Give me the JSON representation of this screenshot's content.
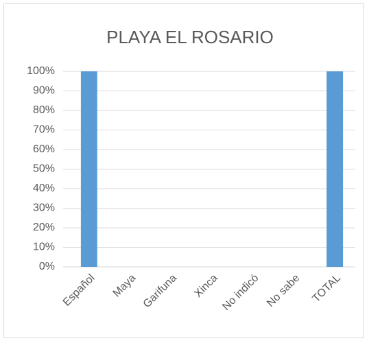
{
  "chart_data": {
    "type": "bar",
    "title": "PLAYA EL ROSARIO",
    "categories": [
      "Español",
      "Maya",
      "Garifuna",
      "Xinca",
      "No indicó",
      "No sabe",
      "TOTAL"
    ],
    "values": [
      100,
      0,
      0,
      0,
      0,
      0,
      100
    ],
    "color": "#5b9bd5",
    "ylim": [
      0,
      100
    ],
    "yticks": [
      {
        "value": 0,
        "label": "0%"
      },
      {
        "value": 10,
        "label": "10%"
      },
      {
        "value": 20,
        "label": "20%"
      },
      {
        "value": 30,
        "label": "30%"
      },
      {
        "value": 40,
        "label": "40%"
      },
      {
        "value": 50,
        "label": "50%"
      },
      {
        "value": 60,
        "label": "60%"
      },
      {
        "value": 70,
        "label": "70%"
      },
      {
        "value": 80,
        "label": "80%"
      },
      {
        "value": 90,
        "label": "90%"
      },
      {
        "value": 100,
        "label": "100%"
      }
    ],
    "grid": true
  }
}
